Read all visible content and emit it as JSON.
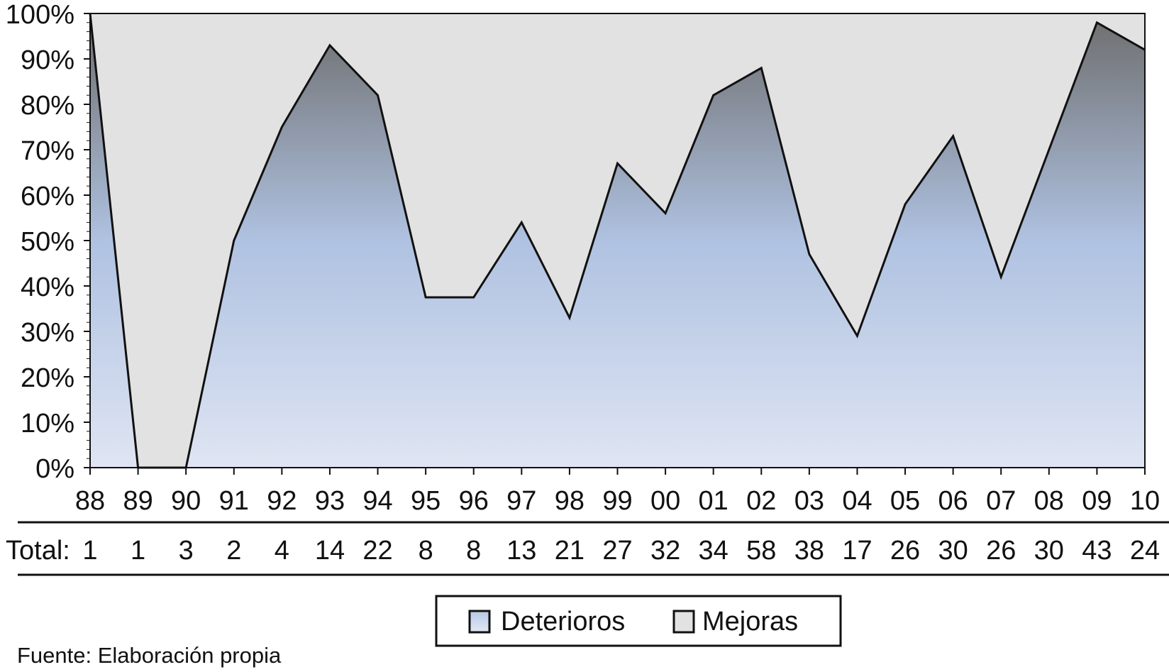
{
  "chart_data": {
    "type": "area",
    "stacked_percent": true,
    "categories": [
      "88",
      "89",
      "90",
      "91",
      "92",
      "93",
      "94",
      "95",
      "96",
      "97",
      "98",
      "99",
      "00",
      "01",
      "02",
      "03",
      "04",
      "05",
      "06",
      "07",
      "08",
      "09",
      "10"
    ],
    "series": [
      {
        "name": "Deterioros",
        "values": [
          100,
          0,
          0,
          50,
          75,
          93,
          82,
          37.5,
          37.5,
          54,
          33,
          67,
          56,
          82,
          88,
          47,
          29,
          58,
          73,
          42,
          70,
          98,
          92
        ],
        "color_top": "#6d6d6d",
        "color_bottom": "#dfe5f3"
      },
      {
        "name": "Mejoras",
        "values": [
          0,
          100,
          100,
          50,
          25,
          7,
          18,
          62.5,
          62.5,
          46,
          67,
          33,
          44,
          18,
          12,
          53,
          71,
          42,
          27,
          58,
          30,
          2,
          8
        ],
        "color": "#e1e2e1"
      }
    ],
    "y_ticks": [
      "0%",
      "10%",
      "20%",
      "30%",
      "40%",
      "50%",
      "60%",
      "70%",
      "80%",
      "90%",
      "100%"
    ],
    "ylim": [
      0,
      100
    ],
    "totals_label": "Total:",
    "totals": [
      "1",
      "1",
      "3",
      "2",
      "4",
      "14",
      "22",
      "8",
      "8",
      "13",
      "21",
      "27",
      "32",
      "34",
      "58",
      "38",
      "17",
      "26",
      "30",
      "26",
      "30",
      "43",
      "24"
    ],
    "legend": {
      "position": "bottom-center",
      "items": [
        {
          "label": "Deterioros"
        },
        {
          "label": "Mejoras"
        }
      ]
    },
    "grid": false,
    "source": "Fuente: Elaboración propia"
  }
}
